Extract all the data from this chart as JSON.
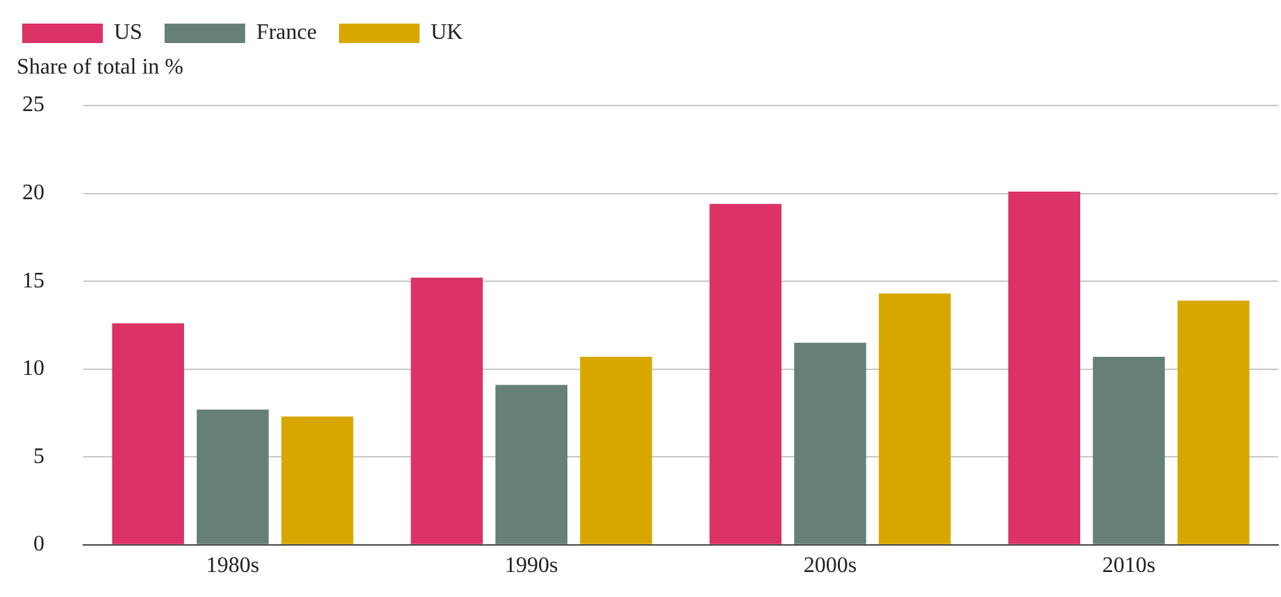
{
  "chart_data": {
    "type": "bar",
    "ylabel": "Share of total in %",
    "categories": [
      "1980s",
      "1990s",
      "2000s",
      "2010s"
    ],
    "series": [
      {
        "name": "US",
        "color": "#dc3265",
        "values": [
          12.6,
          15.2,
          19.4,
          20.1
        ]
      },
      {
        "name": "France",
        "color": "#668079",
        "values": [
          7.7,
          9.1,
          11.5,
          10.7
        ]
      },
      {
        "name": "UK",
        "color": "#d9a800",
        "values": [
          7.3,
          10.7,
          14.3,
          13.9
        ]
      }
    ],
    "ylim": [
      0,
      25
    ],
    "yticks": [
      0,
      5,
      10,
      15,
      20,
      25
    ],
    "grid": "y",
    "legend": "top left"
  }
}
